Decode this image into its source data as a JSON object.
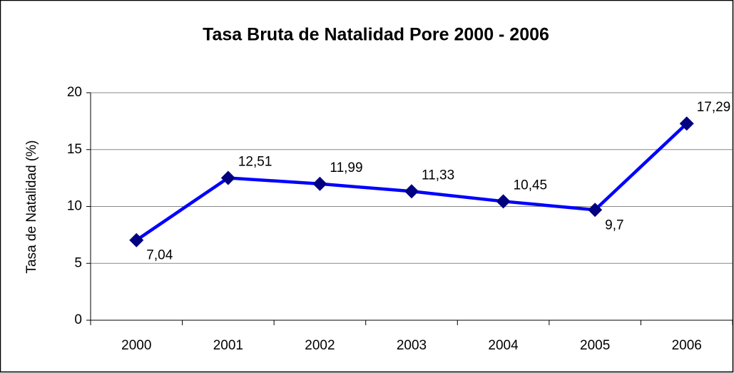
{
  "chart_data": {
    "type": "line",
    "title": "Tasa Bruta de Natalidad Pore 2000 - 2006",
    "y_label": "Tasa de Natalidad (%)",
    "categories": [
      "2000",
      "2001",
      "2002",
      "2003",
      "2004",
      "2005",
      "2006"
    ],
    "series": [
      {
        "name": "Tasa Bruta de Natalidad",
        "color": "#0000ff",
        "marker_color": "#000080",
        "values": [
          7.04,
          12.51,
          11.99,
          11.33,
          10.45,
          9.7,
          17.29
        ],
        "value_labels": [
          "7,04",
          "12,51",
          "11,99",
          "11,33",
          "10,45",
          "9,7",
          "17,29"
        ]
      }
    ],
    "ylim": [
      0,
      20
    ],
    "yticks": [
      0,
      5,
      10,
      15,
      20
    ],
    "grid": true
  }
}
